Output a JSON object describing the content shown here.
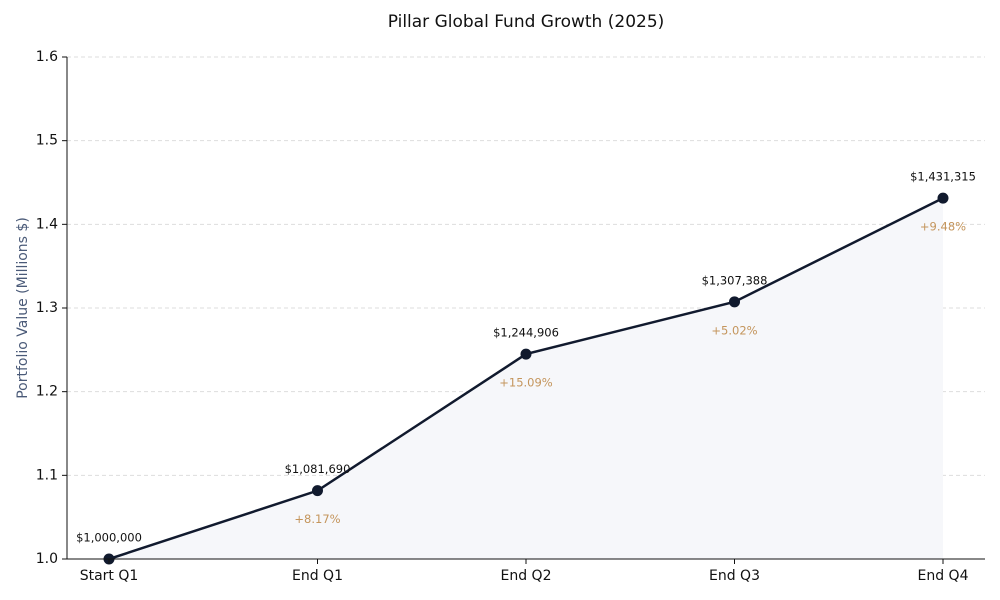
{
  "chart_data": {
    "type": "line",
    "title": "Pillar Global Fund Growth (2025)",
    "ylabel": "Portfolio Value (Millions $)",
    "categories": [
      "Start Q1",
      "End Q1",
      "End Q2",
      "End Q3",
      "End Q4"
    ],
    "series": [
      {
        "name": "Portfolio Value",
        "color": "#111a2e",
        "values": [
          1.0,
          1.08169,
          1.244906,
          1.307388,
          1.431315
        ],
        "value_labels": [
          "$1,000,000",
          "$1,081,690",
          "$1,244,906",
          "$1,307,388",
          "$1,431,315"
        ]
      }
    ],
    "change_labels": [
      null,
      "+8.17%",
      "+15.09%",
      "+5.02%",
      "+9.48%"
    ],
    "ylim": [
      1.0,
      1.6
    ],
    "yticks": [
      {
        "value": 1.0,
        "label": "1.0"
      },
      1.1,
      1.2,
      1.3,
      1.4,
      1.5,
      1.6
    ],
    "grid": true
  }
}
